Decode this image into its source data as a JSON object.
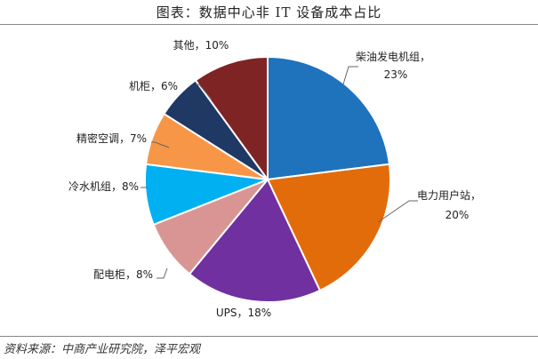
{
  "title": "图表：数据中心非 IT 设备成本占比",
  "source": "资料来源：中商产业研究院，泽平宏观",
  "chart_data": {
    "type": "pie",
    "title": "图表：数据中心非 IT 设备成本占比",
    "legend": "none",
    "slices": [
      {
        "name": "柴油发电机组",
        "value": 23,
        "label_name": "柴油发电机组，",
        "label_value": "23%",
        "color": "#1F73BC"
      },
      {
        "name": "电力用户站",
        "value": 20,
        "label_name": "电力用户站，",
        "label_value": "20%",
        "color": "#E36C0A"
      },
      {
        "name": "UPS",
        "value": 18,
        "label_text": "UPS，18%",
        "color": "#7030A0"
      },
      {
        "name": "配电柜",
        "value": 8,
        "label_text": "配电柜，8%",
        "color": "#D99594"
      },
      {
        "name": "冷水机组",
        "value": 8,
        "label_text": "冷水机组，8%",
        "color": "#00B0F0"
      },
      {
        "name": "精密空调",
        "value": 7,
        "label_text": "精密空调，7%",
        "color": "#F79646"
      },
      {
        "name": "机柜",
        "value": 6,
        "label_text": "机柜，6%",
        "color": "#1F3864"
      },
      {
        "name": "其他",
        "value": 10,
        "label_text": "其他，10%",
        "color": "#7F2424"
      }
    ]
  }
}
